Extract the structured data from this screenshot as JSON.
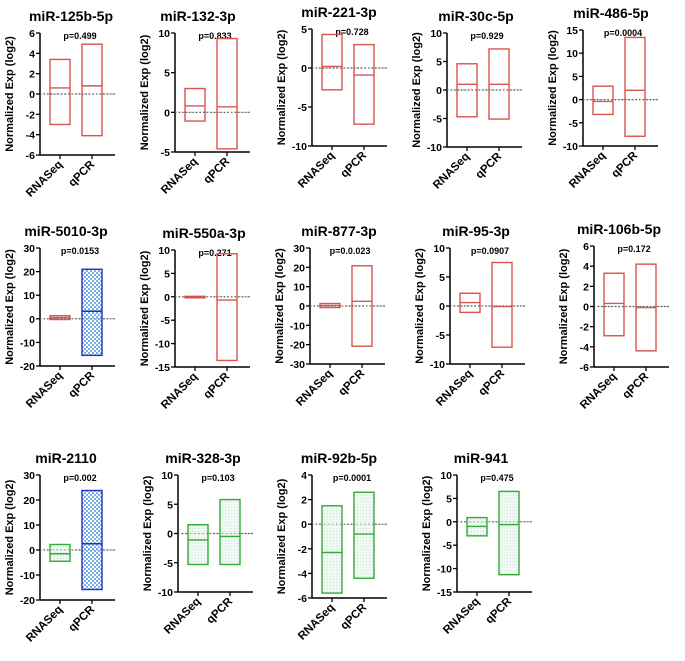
{
  "chart_data": [
    {
      "type": "box",
      "title": "miR-125b-5p",
      "pvalue": "p=0.499",
      "ylabel": "Normalized Exp (log2)",
      "ylim": [
        -6,
        6
      ],
      "yticks": [
        -6,
        -4,
        -2,
        0,
        2,
        4,
        6
      ],
      "categories": [
        "RNASeq",
        "qPCR"
      ],
      "boxes": [
        {
          "min": -3.0,
          "median": 0.6,
          "max": 3.4,
          "color": "#d9534f",
          "fill": "none"
        },
        {
          "min": -4.1,
          "median": 0.8,
          "max": 4.9,
          "color": "#d9534f",
          "fill": "none"
        }
      ]
    },
    {
      "type": "box",
      "title": "miR-132-3p",
      "pvalue": "p=0.833",
      "ylabel": "Normalized Exp (log2)",
      "ylim": [
        -5,
        10
      ],
      "yticks": [
        -5,
        0,
        5,
        10
      ],
      "categories": [
        "RNASeq",
        "qPCR"
      ],
      "boxes": [
        {
          "min": -1.1,
          "median": 0.8,
          "max": 3.0,
          "color": "#d9534f",
          "fill": "none"
        },
        {
          "min": -4.6,
          "median": 0.7,
          "max": 9.3,
          "color": "#d9534f",
          "fill": "none"
        }
      ]
    },
    {
      "type": "box",
      "title": "miR-221-3p",
      "pvalue": "p=0.728",
      "ylabel": "Normalized Exp (log2)",
      "ylim": [
        -10,
        5
      ],
      "yticks": [
        -10,
        -5,
        0,
        5
      ],
      "categories": [
        "RNASeq",
        "qPCR"
      ],
      "boxes": [
        {
          "min": -2.8,
          "median": 0.2,
          "max": 4.3,
          "color": "#d9534f",
          "fill": "none"
        },
        {
          "min": -7.2,
          "median": -0.9,
          "max": 3.0,
          "color": "#d9534f",
          "fill": "none"
        }
      ]
    },
    {
      "type": "box",
      "title": "miR-30c-5p",
      "pvalue": "p=0.929",
      "ylabel": "Normalized Exp (log2)",
      "ylim": [
        -10,
        10
      ],
      "yticks": [
        -10,
        -5,
        0,
        5,
        10
      ],
      "categories": [
        "RNASeq",
        "qPCR"
      ],
      "boxes": [
        {
          "min": -4.7,
          "median": 1.0,
          "max": 4.6,
          "color": "#d9534f",
          "fill": "none"
        },
        {
          "min": -5.1,
          "median": 1.0,
          "max": 7.2,
          "color": "#d9534f",
          "fill": "none"
        }
      ]
    },
    {
      "type": "box",
      "title": "miR-486-5p",
      "pvalue": "p=0.0004",
      "ylabel": "Normalized Exp (log2)",
      "ylim": [
        -10,
        15
      ],
      "yticks": [
        -10,
        -5,
        0,
        5,
        10,
        15
      ],
      "categories": [
        "RNASeq",
        "qPCR"
      ],
      "boxes": [
        {
          "min": -3.2,
          "median": -0.4,
          "max": 2.9,
          "color": "#d9534f",
          "fill": "none"
        },
        {
          "min": -7.9,
          "median": 2.0,
          "max": 13.4,
          "color": "#d9534f",
          "fill": "none"
        }
      ]
    },
    {
      "type": "box",
      "title": "miR-5010-3p",
      "pvalue": "p=0.0153",
      "ylabel": "Normalized Exp (log2)",
      "ylim": [
        -20,
        30
      ],
      "yticks": [
        -20,
        -10,
        0,
        10,
        20,
        30
      ],
      "categories": [
        "RNASeq",
        "qPCR"
      ],
      "boxes": [
        {
          "min": -0.3,
          "median": 0.5,
          "max": 1.3,
          "color": "#d9534f",
          "fill": "none"
        },
        {
          "min": -15.5,
          "median": 3.2,
          "max": 21.0,
          "color": "#2233bb",
          "fill": "check"
        }
      ]
    },
    {
      "type": "box",
      "title": "miR-550a-3p",
      "pvalue": "p=0.271",
      "ylabel": "Normalized Exp (log2)",
      "ylim": [
        -15,
        10
      ],
      "yticks": [
        -15,
        -10,
        -5,
        0,
        5,
        10
      ],
      "categories": [
        "RNASeq",
        "qPCR"
      ],
      "boxes": [
        {
          "min": -0.1,
          "median": 0.0,
          "max": 0.1,
          "color": "#d9534f",
          "fill": "none"
        },
        {
          "min": -13.6,
          "median": -0.7,
          "max": 9.2,
          "color": "#d9534f",
          "fill": "none"
        }
      ]
    },
    {
      "type": "box",
      "title": "miR-877-3p",
      "pvalue": "p=0.0.023",
      "ylabel": "Normalized Exp (log2)",
      "ylim": [
        -30,
        30
      ],
      "yticks": [
        -30,
        -20,
        -10,
        0,
        10,
        20,
        30
      ],
      "categories": [
        "RNASeq",
        "qPCR"
      ],
      "boxes": [
        {
          "min": -0.8,
          "median": 0.3,
          "max": 1.3,
          "color": "#d9534f",
          "fill": "none"
        },
        {
          "min": -20.8,
          "median": 2.4,
          "max": 20.8,
          "color": "#d9534f",
          "fill": "none"
        }
      ]
    },
    {
      "type": "box",
      "title": "miR-95-3p",
      "pvalue": "p=0.0907",
      "ylabel": "Normalized Exp (log2)",
      "ylim": [
        -10,
        10
      ],
      "yticks": [
        -10,
        -5,
        0,
        5,
        10
      ],
      "categories": [
        "RNASeq",
        "qPCR"
      ],
      "boxes": [
        {
          "min": -1.1,
          "median": 0.6,
          "max": 2.2,
          "color": "#d9534f",
          "fill": "none"
        },
        {
          "min": -7.1,
          "median": -0.1,
          "max": 7.5,
          "color": "#d9534f",
          "fill": "none"
        }
      ]
    },
    {
      "type": "box",
      "title": "miR-106b-5p",
      "pvalue": "p=0.172",
      "ylabel": "Normalized Exp (log2)",
      "ylim": [
        -6,
        6
      ],
      "yticks": [
        -6,
        -4,
        -2,
        0,
        2,
        4,
        6
      ],
      "categories": [
        "RNASeq",
        "qPCR"
      ],
      "boxes": [
        {
          "min": -2.9,
          "median": 0.3,
          "max": 3.3,
          "color": "#d9534f",
          "fill": "none"
        },
        {
          "min": -4.4,
          "median": -0.1,
          "max": 4.2,
          "color": "#d9534f",
          "fill": "none"
        }
      ]
    },
    {
      "type": "box",
      "title": "miR-2110",
      "pvalue": "p=0.002",
      "ylabel": "Normalized Exp (log2)",
      "ylim": [
        -20,
        30
      ],
      "yticks": [
        -20,
        -10,
        0,
        10,
        20,
        30
      ],
      "categories": [
        "RNASeq",
        "qPCR"
      ],
      "boxes": [
        {
          "min": -4.5,
          "median": -1.5,
          "max": 2.2,
          "color": "#33aa33",
          "fill": "dots"
        },
        {
          "min": -15.8,
          "median": 2.5,
          "max": 23.8,
          "color": "#2233bb",
          "fill": "check"
        }
      ]
    },
    {
      "type": "box",
      "title": "miR-328-3p",
      "pvalue": "p=0.103",
      "ylabel": "Normalized Exp (log2)",
      "ylim": [
        -10,
        10
      ],
      "yticks": [
        -10,
        -5,
        0,
        5,
        10
      ],
      "categories": [
        "RNASeq",
        "qPCR"
      ],
      "boxes": [
        {
          "min": -5.3,
          "median": -1.1,
          "max": 1.5,
          "color": "#33aa33",
          "fill": "dots"
        },
        {
          "min": -5.3,
          "median": -0.5,
          "max": 5.8,
          "color": "#33aa33",
          "fill": "dots"
        }
      ]
    },
    {
      "type": "box",
      "title": "miR-92b-5p",
      "pvalue": "p=0.0001",
      "ylabel": "Normalized Exp (log2)",
      "ylim": [
        -6,
        4
      ],
      "yticks": [
        -6,
        -4,
        -2,
        0,
        2,
        4
      ],
      "categories": [
        "RNASeq",
        "qPCR"
      ],
      "boxes": [
        {
          "min": -5.6,
          "median": -2.3,
          "max": 1.5,
          "color": "#33aa33",
          "fill": "dots"
        },
        {
          "min": -4.4,
          "median": -0.8,
          "max": 2.6,
          "color": "#33aa33",
          "fill": "dots"
        }
      ]
    },
    {
      "type": "box",
      "title": "miR-941",
      "pvalue": "p=0.475",
      "ylabel": "Normalized Exp (log2)",
      "ylim": [
        -15,
        10
      ],
      "yticks": [
        -15,
        -10,
        -5,
        0,
        5,
        10
      ],
      "categories": [
        "RNASeq",
        "qPCR"
      ],
      "boxes": [
        {
          "min": -3.0,
          "median": -1.0,
          "max": 0.9,
          "color": "#33aa33",
          "fill": "dots"
        },
        {
          "min": -11.3,
          "median": -0.6,
          "max": 6.5,
          "color": "#33aa33",
          "fill": "dots"
        }
      ]
    }
  ]
}
